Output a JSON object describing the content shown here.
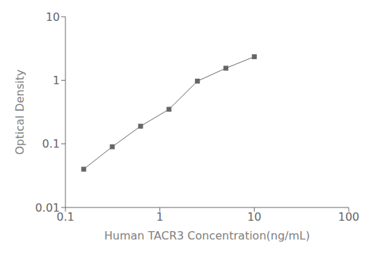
{
  "chart_data": {
    "type": "line",
    "x": [
      0.156,
      0.313,
      0.625,
      1.25,
      2.5,
      5.0,
      10.0
    ],
    "values": [
      0.04,
      0.09,
      0.19,
      0.35,
      0.97,
      1.55,
      2.35
    ],
    "xlabel": "Human TACR3 Concentration(ng/mL)",
    "ylabel": "Optical Density",
    "xlim": [
      0.1,
      100
    ],
    "ylim": [
      0.01,
      10
    ],
    "xticks": [
      0.1,
      1,
      10,
      100
    ],
    "yticks": [
      0.01,
      0.1,
      1,
      10
    ],
    "log": true,
    "grid": false,
    "color": "#666666",
    "marker": "square"
  }
}
